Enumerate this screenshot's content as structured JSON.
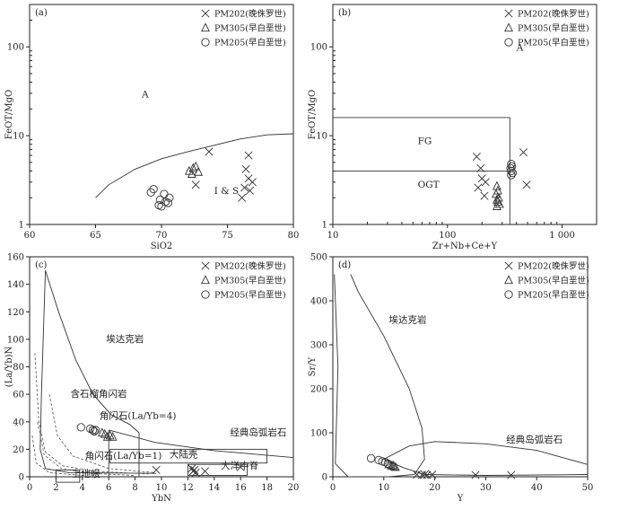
{
  "legend": [
    {
      "symbol": "cross",
      "label": "PM202(晚侏罗世)"
    },
    {
      "symbol": "triangle",
      "label": "PM305(早白垩世)"
    },
    {
      "symbol": "circle",
      "label": "PM205(早白垩世)"
    }
  ],
  "chart_data": [
    {
      "id": "a",
      "panel_label": "(a)",
      "type": "scatter",
      "xlabel": "SiO2",
      "ylabel": "FeOT/MgO",
      "xlim": [
        60,
        80
      ],
      "ylim": [
        1,
        300
      ],
      "y_scale": "log",
      "x_ticks": [
        "60",
        "65",
        "70",
        "75",
        "80"
      ],
      "y_ticks": [
        "1",
        "10",
        "100"
      ],
      "fields": [
        {
          "label": "A",
          "x": 68.5,
          "y": 27
        },
        {
          "label": "I & S",
          "x": 74,
          "y": 2.2
        }
      ],
      "boundary": [
        [
          65,
          2.0
        ],
        [
          66,
          2.8
        ],
        [
          68,
          4.2
        ],
        [
          70,
          5.5
        ],
        [
          72,
          6.6
        ],
        [
          74,
          7.8
        ],
        [
          76,
          9.2
        ],
        [
          78,
          10.2
        ],
        [
          80,
          10.5
        ]
      ],
      "series": [
        {
          "name": "PM202(晚侏罗世)",
          "symbol": "cross",
          "points": [
            [
              73.6,
              6.6
            ],
            [
              72.6,
              2.8
            ],
            [
              76.6,
              6.0
            ],
            [
              76.4,
              4.2
            ],
            [
              76.6,
              3.3
            ],
            [
              76.9,
              3.0
            ],
            [
              76.3,
              2.6
            ],
            [
              76.7,
              2.4
            ],
            [
              76.1,
              2.0
            ]
          ]
        },
        {
          "name": "PM305(早白垩世)",
          "symbol": "triangle",
          "points": [
            [
              72.1,
              4.0
            ],
            [
              72.4,
              4.3
            ],
            [
              72.6,
              4.5
            ],
            [
              72.8,
              3.9
            ],
            [
              72.3,
              3.7
            ]
          ]
        },
        {
          "name": "PM205(早白垩世)",
          "symbol": "circle",
          "points": [
            [
              69.2,
              2.3
            ],
            [
              69.4,
              2.5
            ],
            [
              69.9,
              1.9
            ],
            [
              70.2,
              2.2
            ],
            [
              70.3,
              1.8
            ],
            [
              70.0,
              1.6
            ],
            [
              70.6,
              2.0
            ],
            [
              70.5,
              1.75
            ],
            [
              69.8,
              1.65
            ]
          ]
        }
      ]
    },
    {
      "id": "b",
      "panel_label": "(b)",
      "type": "scatter",
      "xlabel": "Zr+Nb+Ce+Y",
      "ylabel": "FeOT/MgO",
      "xlim": [
        10,
        2000
      ],
      "ylim": [
        1,
        300
      ],
      "x_scale": "log",
      "y_scale": "log",
      "x_ticks": [
        "10",
        "100",
        "1 000"
      ],
      "y_ticks": [
        "1",
        "10",
        "100"
      ],
      "fields": [
        {
          "label": "A",
          "x": 400,
          "y": 90
        },
        {
          "label": "FG",
          "x": 55,
          "y": 8
        },
        {
          "label": "OGT",
          "x": 55,
          "y": 2.6
        }
      ],
      "series": [
        {
          "name": "PM202(晚侏罗世)",
          "symbol": "cross",
          "points": [
            [
              180,
              5.8
            ],
            [
              460,
              6.5
            ],
            [
              195,
              4.3
            ],
            [
              200,
              3.3
            ],
            [
              215,
              3.0
            ],
            [
              185,
              2.6
            ],
            [
              490,
              2.8
            ],
            [
              210,
              2.1
            ]
          ]
        },
        {
          "name": "PM305(早白垩世)",
          "symbol": "triangle",
          "points": [
            [
              270,
              2.7
            ],
            [
              275,
              2.4
            ],
            [
              265,
              2.2
            ],
            [
              280,
              2.0
            ],
            [
              270,
              1.9
            ],
            [
              275,
              1.8
            ],
            [
              285,
              1.7
            ],
            [
              270,
              1.6
            ]
          ]
        },
        {
          "name": "PM205(早白垩世)",
          "symbol": "circle",
          "points": [
            [
              360,
              4.8
            ],
            [
              365,
              4.5
            ],
            [
              355,
              4.3
            ],
            [
              360,
              4.0
            ],
            [
              370,
              3.8
            ],
            [
              360,
              3.6
            ]
          ]
        }
      ]
    },
    {
      "id": "c",
      "panel_label": "(c)",
      "type": "scatter",
      "xlabel": "YbN",
      "ylabel": "(La/Yb)N",
      "xlim": [
        0,
        20
      ],
      "ylim": [
        0,
        160
      ],
      "x_ticks": [
        "0",
        "2",
        "4",
        "6",
        "8",
        "10",
        "12",
        "14",
        "16",
        "18",
        "20"
      ],
      "y_ticks": [
        "0",
        "20",
        "40",
        "60",
        "80",
        "100",
        "120",
        "140",
        "160"
      ],
      "fields": [
        {
          "label": "埃达克岩",
          "x": 5.8,
          "y": 98
        },
        {
          "label": "含石榴角闪岩",
          "x": 3.1,
          "y": 58
        },
        {
          "label": "角闪石(La/Yb=4)",
          "x": 5.3,
          "y": 42
        },
        {
          "label": "经典岛弧岩石",
          "x": 15.2,
          "y": 30
        },
        {
          "label": "大陆壳",
          "x": 10.6,
          "y": 14
        },
        {
          "label": "大洋中脊",
          "x": 14.5,
          "y": 6
        },
        {
          "label": "角闪石(La/Yb=1)",
          "x": 4.2,
          "y": 13
        },
        {
          "label": "上地幔",
          "x": 3.2,
          "y": 0
        }
      ],
      "series": [
        {
          "name": "PM202(晚侏罗世)",
          "symbol": "cross",
          "points": [
            [
              9.6,
              5
            ],
            [
              12.3,
              6
            ],
            [
              12.5,
              5
            ],
            [
              12.4,
              4
            ],
            [
              12.6,
              3
            ],
            [
              13.3,
              4
            ],
            [
              16.0,
              7
            ]
          ]
        },
        {
          "name": "PM305(早白垩世)",
          "symbol": "triangle",
          "points": [
            [
              5.5,
              32
            ],
            [
              5.7,
              31
            ],
            [
              6.1,
              30
            ],
            [
              6.3,
              29
            ],
            [
              5.9,
              29
            ]
          ]
        },
        {
          "name": "PM205(早白垩世)",
          "symbol": "circle",
          "points": [
            [
              3.9,
              36
            ],
            [
              4.6,
              35
            ],
            [
              4.8,
              34
            ],
            [
              4.9,
              33
            ],
            [
              5.0,
              34
            ]
          ]
        }
      ]
    },
    {
      "id": "d",
      "panel_label": "(d)",
      "type": "scatter",
      "xlabel": "Y",
      "ylabel": "Sr/Y",
      "xlim": [
        0,
        50
      ],
      "ylim": [
        0,
        500
      ],
      "x_ticks": [
        "0",
        "10",
        "20",
        "30",
        "40",
        "50"
      ],
      "y_ticks": [
        "0",
        "100",
        "200",
        "300",
        "400",
        "500"
      ],
      "fields": [
        {
          "label": "埃达克岩",
          "x": 11,
          "y": 350
        },
        {
          "label": "经典岛弧岩石",
          "x": 34,
          "y": 78
        }
      ],
      "series": [
        {
          "name": "PM202(晚侏罗世)",
          "symbol": "cross",
          "points": [
            [
              16.5,
              5
            ],
            [
              17.5,
              4
            ],
            [
              18.0,
              5
            ],
            [
              18.5,
              4
            ],
            [
              19.5,
              5
            ],
            [
              28.0,
              4
            ],
            [
              35.0,
              4
            ]
          ]
        },
        {
          "name": "PM305(早白垩世)",
          "symbol": "triangle",
          "points": [
            [
              11.0,
              28
            ],
            [
              11.5,
              25
            ],
            [
              12.0,
              23
            ],
            [
              12.3,
              22
            ],
            [
              11.8,
              26
            ]
          ]
        },
        {
          "name": "PM205(早白垩世)",
          "symbol": "circle",
          "points": [
            [
              7.5,
              42
            ],
            [
              9.0,
              38
            ],
            [
              9.7,
              35
            ],
            [
              10.3,
              33
            ],
            [
              10.8,
              30
            ]
          ]
        }
      ]
    }
  ]
}
